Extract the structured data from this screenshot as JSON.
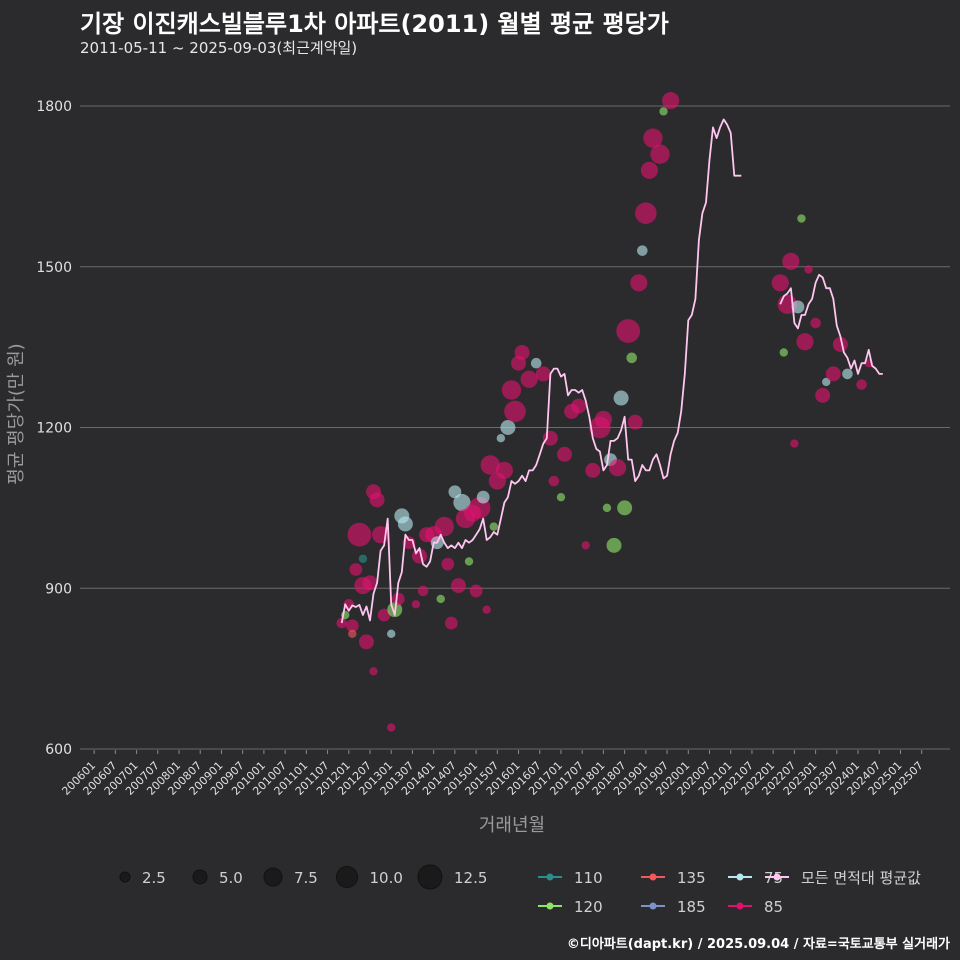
{
  "header": {
    "title": "기장 이진캐스빌블루1차 아파트(2011) 월별 평균 평당가",
    "subtitle": "2011-05-11 ~ 2025-09-03(최근계약일)"
  },
  "caption": "©디아파트(dapt.kr) / 2025.09.04 / 자료=국토교통부 실거래가",
  "colors": {
    "background": "#2b2a2c",
    "grid": "#6a6a6a",
    "avg_line": "#ffc6f0",
    "s110": "#2a8f8c",
    "s120": "#8fe36b",
    "s135": "#f2575a",
    "s185": "#7b93c6",
    "s75": "#b7e7ee",
    "s85": "#e0116e"
  },
  "chart_data": {
    "type": "scatter",
    "title": "기장 이진캐스빌블루1차 아파트(2011) 월별 평균 평당가",
    "subtitle": "2011-05-11 ~ 2025-09-03(최근계약일)",
    "xlabel": "거래년월",
    "ylabel": "평균 평당가(만 원)",
    "ylim": [
      600,
      1850
    ],
    "yticks": [
      600,
      900,
      1200,
      1500,
      1800
    ],
    "xticks": [
      "200601",
      "200607",
      "200701",
      "200707",
      "200801",
      "200807",
      "200901",
      "200907",
      "201001",
      "201007",
      "201101",
      "201107",
      "201201",
      "201207",
      "201301",
      "201307",
      "201401",
      "201407",
      "201501",
      "201507",
      "201601",
      "201607",
      "201701",
      "201707",
      "201801",
      "201807",
      "201901",
      "201907",
      "202001",
      "202007",
      "202101",
      "202107",
      "202201",
      "202207",
      "202301",
      "202307",
      "202401",
      "202407",
      "202501",
      "202507"
    ],
    "grid": true,
    "size_legend": {
      "values": [
        2.5,
        5.0,
        7.5,
        10.0,
        12.5
      ],
      "labels": [
        "2.5",
        "5.0",
        "7.5",
        "10.0",
        "12.5"
      ]
    },
    "legend_series": [
      {
        "key": "s110",
        "label": "110"
      },
      {
        "key": "s135",
        "label": "135"
      },
      {
        "key": "s75",
        "label": "75"
      },
      {
        "key": "avg",
        "label": "모든 면적대 평균값"
      },
      {
        "key": "s120",
        "label": "120"
      },
      {
        "key": "s185",
        "label": "185"
      },
      {
        "key": "s85",
        "label": "85"
      }
    ],
    "avg_line": [
      [
        "2011-11",
        835
      ],
      [
        "2011-12",
        870
      ],
      [
        "2012-01",
        858
      ],
      [
        "2012-02",
        868
      ],
      [
        "2012-03",
        865
      ],
      [
        "2012-04",
        869
      ],
      [
        "2012-05",
        850
      ],
      [
        "2012-06",
        866
      ],
      [
        "2012-07",
        840
      ],
      [
        "2012-08",
        890
      ],
      [
        "2012-09",
        910
      ],
      [
        "2012-10",
        970
      ],
      [
        "2012-11",
        980
      ],
      [
        "2012-12",
        1030
      ],
      [
        "2013-01",
        870
      ],
      [
        "2013-02",
        850
      ],
      [
        "2013-03",
        910
      ],
      [
        "2013-04",
        930
      ],
      [
        "2013-05",
        1000
      ],
      [
        "2013-06",
        990
      ],
      [
        "2013-07",
        990
      ],
      [
        "2013-08",
        965
      ],
      [
        "2013-09",
        975
      ],
      [
        "2013-10",
        945
      ],
      [
        "2013-11",
        940
      ],
      [
        "2013-12",
        950
      ],
      [
        "2014-01",
        985
      ],
      [
        "2014-02",
        985
      ],
      [
        "2014-03",
        1000
      ],
      [
        "2014-04",
        985
      ],
      [
        "2014-05",
        975
      ],
      [
        "2014-06",
        980
      ],
      [
        "2014-07",
        975
      ],
      [
        "2014-08",
        985
      ],
      [
        "2014-09",
        975
      ],
      [
        "2014-10",
        990
      ],
      [
        "2014-11",
        985
      ],
      [
        "2014-12",
        990
      ],
      [
        "2015-01",
        1000
      ],
      [
        "2015-02",
        1010
      ],
      [
        "2015-03",
        1030
      ],
      [
        "2015-04",
        990
      ],
      [
        "2015-05",
        995
      ],
      [
        "2015-06",
        1005
      ],
      [
        "2015-07",
        1000
      ],
      [
        "2015-08",
        1030
      ],
      [
        "2015-09",
        1060
      ],
      [
        "2015-10",
        1070
      ],
      [
        "2015-11",
        1100
      ],
      [
        "2015-12",
        1095
      ],
      [
        "2016-01",
        1100
      ],
      [
        "2016-02",
        1110
      ],
      [
        "2016-03",
        1100
      ],
      [
        "2016-04",
        1120
      ],
      [
        "2016-05",
        1120
      ],
      [
        "2016-06",
        1130
      ],
      [
        "2016-07",
        1150
      ],
      [
        "2016-08",
        1170
      ],
      [
        "2016-09",
        1180
      ],
      [
        "2016-10",
        1300
      ],
      [
        "2016-11",
        1310
      ],
      [
        "2016-12",
        1310
      ],
      [
        "2017-01",
        1295
      ],
      [
        "2017-02",
        1300
      ],
      [
        "2017-03",
        1260
      ],
      [
        "2017-04",
        1270
      ],
      [
        "2017-05",
        1270
      ],
      [
        "2017-06",
        1265
      ],
      [
        "2017-07",
        1270
      ],
      [
        "2017-08",
        1250
      ],
      [
        "2017-09",
        1220
      ],
      [
        "2017-10",
        1180
      ],
      [
        "2017-11",
        1160
      ],
      [
        "2017-12",
        1155
      ],
      [
        "2018-01",
        1120
      ],
      [
        "2018-02",
        1130
      ],
      [
        "2018-03",
        1175
      ],
      [
        "2018-04",
        1175
      ],
      [
        "2018-05",
        1180
      ],
      [
        "2018-06",
        1195
      ],
      [
        "2018-07",
        1220
      ],
      [
        "2018-08",
        1140
      ],
      [
        "2018-09",
        1140
      ],
      [
        "2018-10",
        1100
      ],
      [
        "2018-11",
        1110
      ],
      [
        "2018-12",
        1130
      ],
      [
        "2019-01",
        1120
      ],
      [
        "2019-02",
        1120
      ],
      [
        "2019-03",
        1140
      ],
      [
        "2019-04",
        1150
      ],
      [
        "2019-05",
        1130
      ],
      [
        "2019-06",
        1105
      ],
      [
        "2019-07",
        1110
      ],
      [
        "2019-08",
        1150
      ],
      [
        "2019-09",
        1175
      ],
      [
        "2019-10",
        1190
      ],
      [
        "2019-11",
        1230
      ],
      [
        "2019-12",
        1300
      ],
      [
        "2020-01",
        1400
      ],
      [
        "2020-02",
        1410
      ],
      [
        "2020-03",
        1440
      ],
      [
        "2020-04",
        1550
      ],
      [
        "2020-05",
        1600
      ],
      [
        "2020-06",
        1620
      ],
      [
        "2020-07",
        1700
      ],
      [
        "2020-08",
        1760
      ],
      [
        "2020-09",
        1740
      ],
      [
        "2020-10",
        1760
      ],
      [
        "2020-11",
        1775
      ],
      [
        "2020-12",
        1765
      ],
      [
        "2021-01",
        1750
      ],
      [
        "2021-02",
        1670
      ],
      [
        "2021-03",
        1670
      ],
      [
        "2021-04",
        1670
      ],
      [
        "2022-03",
        1430
      ],
      [
        "2022-04",
        1445
      ],
      [
        "2022-05",
        1450
      ],
      [
        "2022-06",
        1460
      ],
      [
        "2022-07",
        1395
      ],
      [
        "2022-08",
        1385
      ],
      [
        "2022-09",
        1410
      ],
      [
        "2022-10",
        1410
      ],
      [
        "2022-11",
        1430
      ],
      [
        "2022-12",
        1440
      ],
      [
        "2023-01",
        1470
      ],
      [
        "2023-02",
        1485
      ],
      [
        "2023-03",
        1480
      ],
      [
        "2023-04",
        1460
      ],
      [
        "2023-05",
        1460
      ],
      [
        "2023-06",
        1440
      ],
      [
        "2023-07",
        1390
      ],
      [
        "2023-08",
        1370
      ],
      [
        "2023-09",
        1340
      ],
      [
        "2023-10",
        1330
      ],
      [
        "2023-11",
        1310
      ],
      [
        "2023-12",
        1325
      ],
      [
        "2024-01",
        1300
      ],
      [
        "2024-02",
        1320
      ],
      [
        "2024-03",
        1320
      ],
      [
        "2024-04",
        1345
      ],
      [
        "2024-05",
        1315
      ],
      [
        "2024-06",
        1310
      ],
      [
        "2024-07",
        1300
      ],
      [
        "2024-08",
        1300
      ]
    ],
    "points": [
      {
        "x": "2011-11",
        "y": 835,
        "s": "s85",
        "size": 3
      },
      {
        "x": "2011-12",
        "y": 850,
        "s": "s120",
        "size": 2
      },
      {
        "x": "2012-01",
        "y": 870,
        "s": "s85",
        "size": 3
      },
      {
        "x": "2012-02",
        "y": 830,
        "s": "s85",
        "size": 4
      },
      {
        "x": "2012-02",
        "y": 815,
        "s": "s135",
        "size": 2
      },
      {
        "x": "2012-03",
        "y": 935,
        "s": "s85",
        "size": 4
      },
      {
        "x": "2012-04",
        "y": 1000,
        "s": "s85",
        "size": 9
      },
      {
        "x": "2012-05",
        "y": 955,
        "s": "s110",
        "size": 2
      },
      {
        "x": "2012-05",
        "y": 905,
        "s": "s85",
        "size": 6
      },
      {
        "x": "2012-06",
        "y": 800,
        "s": "s85",
        "size": 5
      },
      {
        "x": "2012-07",
        "y": 910,
        "s": "s85",
        "size": 5
      },
      {
        "x": "2012-08",
        "y": 1080,
        "s": "s85",
        "size": 5
      },
      {
        "x": "2012-08",
        "y": 745,
        "s": "s85",
        "size": 2
      },
      {
        "x": "2012-09",
        "y": 1065,
        "s": "s85",
        "size": 5
      },
      {
        "x": "2012-10",
        "y": 1000,
        "s": "s85",
        "size": 6
      },
      {
        "x": "2012-11",
        "y": 850,
        "s": "s85",
        "size": 4
      },
      {
        "x": "2013-01",
        "y": 640,
        "s": "s85",
        "size": 2
      },
      {
        "x": "2013-01",
        "y": 815,
        "s": "s75",
        "size": 2
      },
      {
        "x": "2013-02",
        "y": 860,
        "s": "s120",
        "size": 5
      },
      {
        "x": "2013-03",
        "y": 880,
        "s": "s85",
        "size": 4
      },
      {
        "x": "2013-04",
        "y": 1035,
        "s": "s75",
        "size": 5
      },
      {
        "x": "2013-05",
        "y": 1020,
        "s": "s75",
        "size": 5
      },
      {
        "x": "2013-06",
        "y": 985,
        "s": "s85",
        "size": 4
      },
      {
        "x": "2013-08",
        "y": 870,
        "s": "s85",
        "size": 2
      },
      {
        "x": "2013-09",
        "y": 960,
        "s": "s85",
        "size": 5
      },
      {
        "x": "2013-10",
        "y": 895,
        "s": "s85",
        "size": 3
      },
      {
        "x": "2013-11",
        "y": 1000,
        "s": "s85",
        "size": 5
      },
      {
        "x": "2014-01",
        "y": 1000,
        "s": "s85",
        "size": 6
      },
      {
        "x": "2014-02",
        "y": 985,
        "s": "s75",
        "size": 4
      },
      {
        "x": "2014-03",
        "y": 880,
        "s": "s120",
        "size": 2
      },
      {
        "x": "2014-04",
        "y": 1015,
        "s": "s85",
        "size": 7
      },
      {
        "x": "2014-05",
        "y": 945,
        "s": "s85",
        "size": 4
      },
      {
        "x": "2014-06",
        "y": 835,
        "s": "s85",
        "size": 4
      },
      {
        "x": "2014-07",
        "y": 1080,
        "s": "s75",
        "size": 4
      },
      {
        "x": "2014-08",
        "y": 905,
        "s": "s85",
        "size": 5
      },
      {
        "x": "2014-09",
        "y": 1060,
        "s": "s75",
        "size": 6
      },
      {
        "x": "2014-10",
        "y": 1030,
        "s": "s85",
        "size": 7
      },
      {
        "x": "2014-11",
        "y": 950,
        "s": "s120",
        "size": 2
      },
      {
        "x": "2014-12",
        "y": 1040,
        "s": "s85",
        "size": 6
      },
      {
        "x": "2015-01",
        "y": 895,
        "s": "s85",
        "size": 4
      },
      {
        "x": "2015-02",
        "y": 1050,
        "s": "s85",
        "size": 8
      },
      {
        "x": "2015-03",
        "y": 1070,
        "s": "s75",
        "size": 4
      },
      {
        "x": "2015-04",
        "y": 860,
        "s": "s85",
        "size": 2
      },
      {
        "x": "2015-05",
        "y": 1130,
        "s": "s85",
        "size": 7
      },
      {
        "x": "2015-06",
        "y": 1015,
        "s": "s120",
        "size": 2
      },
      {
        "x": "2015-07",
        "y": 1100,
        "s": "s85",
        "size": 6
      },
      {
        "x": "2015-08",
        "y": 1180,
        "s": "s75",
        "size": 2
      },
      {
        "x": "2015-09",
        "y": 1120,
        "s": "s85",
        "size": 6
      },
      {
        "x": "2015-10",
        "y": 1200,
        "s": "s75",
        "size": 5
      },
      {
        "x": "2015-11",
        "y": 1270,
        "s": "s85",
        "size": 7
      },
      {
        "x": "2015-12",
        "y": 1230,
        "s": "s85",
        "size": 8
      },
      {
        "x": "2016-01",
        "y": 1320,
        "s": "s85",
        "size": 5
      },
      {
        "x": "2016-02",
        "y": 1340,
        "s": "s85",
        "size": 5
      },
      {
        "x": "2016-04",
        "y": 1290,
        "s": "s85",
        "size": 6
      },
      {
        "x": "2016-06",
        "y": 1320,
        "s": "s75",
        "size": 3
      },
      {
        "x": "2016-08",
        "y": 1300,
        "s": "s85",
        "size": 5
      },
      {
        "x": "2016-10",
        "y": 1180,
        "s": "s85",
        "size": 5
      },
      {
        "x": "2016-11",
        "y": 1100,
        "s": "s85",
        "size": 3
      },
      {
        "x": "2017-01",
        "y": 1070,
        "s": "s120",
        "size": 2
      },
      {
        "x": "2017-02",
        "y": 1150,
        "s": "s85",
        "size": 5
      },
      {
        "x": "2017-04",
        "y": 1230,
        "s": "s85",
        "size": 5
      },
      {
        "x": "2017-06",
        "y": 1240,
        "s": "s85",
        "size": 5
      },
      {
        "x": "2017-08",
        "y": 980,
        "s": "s85",
        "size": 2
      },
      {
        "x": "2017-10",
        "y": 1120,
        "s": "s85",
        "size": 5
      },
      {
        "x": "2017-12",
        "y": 1200,
        "s": "s85",
        "size": 8
      },
      {
        "x": "2018-01",
        "y": 1215,
        "s": "s85",
        "size": 6
      },
      {
        "x": "2018-02",
        "y": 1050,
        "s": "s120",
        "size": 2
      },
      {
        "x": "2018-03",
        "y": 1140,
        "s": "s75",
        "size": 4
      },
      {
        "x": "2018-04",
        "y": 980,
        "s": "s120",
        "size": 5
      },
      {
        "x": "2018-05",
        "y": 1125,
        "s": "s85",
        "size": 6
      },
      {
        "x": "2018-06",
        "y": 1255,
        "s": "s75",
        "size": 5
      },
      {
        "x": "2018-07",
        "y": 1050,
        "s": "s120",
        "size": 5
      },
      {
        "x": "2018-08",
        "y": 1380,
        "s": "s85",
        "size": 9
      },
      {
        "x": "2018-09",
        "y": 1330,
        "s": "s120",
        "size": 3
      },
      {
        "x": "2018-10",
        "y": 1210,
        "s": "s85",
        "size": 5
      },
      {
        "x": "2018-11",
        "y": 1470,
        "s": "s85",
        "size": 6
      },
      {
        "x": "2018-12",
        "y": 1530,
        "s": "s75",
        "size": 3
      },
      {
        "x": "2019-01",
        "y": 1600,
        "s": "s85",
        "size": 8
      },
      {
        "x": "2019-02",
        "y": 1680,
        "s": "s85",
        "size": 6
      },
      {
        "x": "2019-03",
        "y": 1740,
        "s": "s85",
        "size": 7
      },
      {
        "x": "2019-05",
        "y": 1710,
        "s": "s85",
        "size": 7
      },
      {
        "x": "2019-06",
        "y": 1790,
        "s": "s120",
        "size": 2
      },
      {
        "x": "2019-08",
        "y": 1810,
        "s": "s85",
        "size": 6
      },
      {
        "x": "2022-03",
        "y": 1470,
        "s": "s85",
        "size": 6
      },
      {
        "x": "2022-04",
        "y": 1340,
        "s": "s120",
        "size": 2
      },
      {
        "x": "2022-05",
        "y": 1430,
        "s": "s85",
        "size": 7
      },
      {
        "x": "2022-06",
        "y": 1510,
        "s": "s85",
        "size": 6
      },
      {
        "x": "2022-07",
        "y": 1170,
        "s": "s85",
        "size": 2
      },
      {
        "x": "2022-08",
        "y": 1425,
        "s": "s75",
        "size": 4
      },
      {
        "x": "2022-09",
        "y": 1590,
        "s": "s120",
        "size": 2
      },
      {
        "x": "2022-10",
        "y": 1360,
        "s": "s85",
        "size": 6
      },
      {
        "x": "2022-11",
        "y": 1495,
        "s": "s85",
        "size": 2
      },
      {
        "x": "2023-01",
        "y": 1395,
        "s": "s85",
        "size": 3
      },
      {
        "x": "2023-03",
        "y": 1260,
        "s": "s85",
        "size": 5
      },
      {
        "x": "2023-04",
        "y": 1285,
        "s": "s75",
        "size": 2
      },
      {
        "x": "2023-06",
        "y": 1300,
        "s": "s85",
        "size": 5
      },
      {
        "x": "2023-08",
        "y": 1355,
        "s": "s85",
        "size": 5
      },
      {
        "x": "2023-10",
        "y": 1300,
        "s": "s75",
        "size": 3
      },
      {
        "x": "2024-02",
        "y": 1280,
        "s": "s85",
        "size": 3
      },
      {
        "x": "2024-04",
        "y": 1320,
        "s": "s85",
        "size": 2
      }
    ]
  }
}
